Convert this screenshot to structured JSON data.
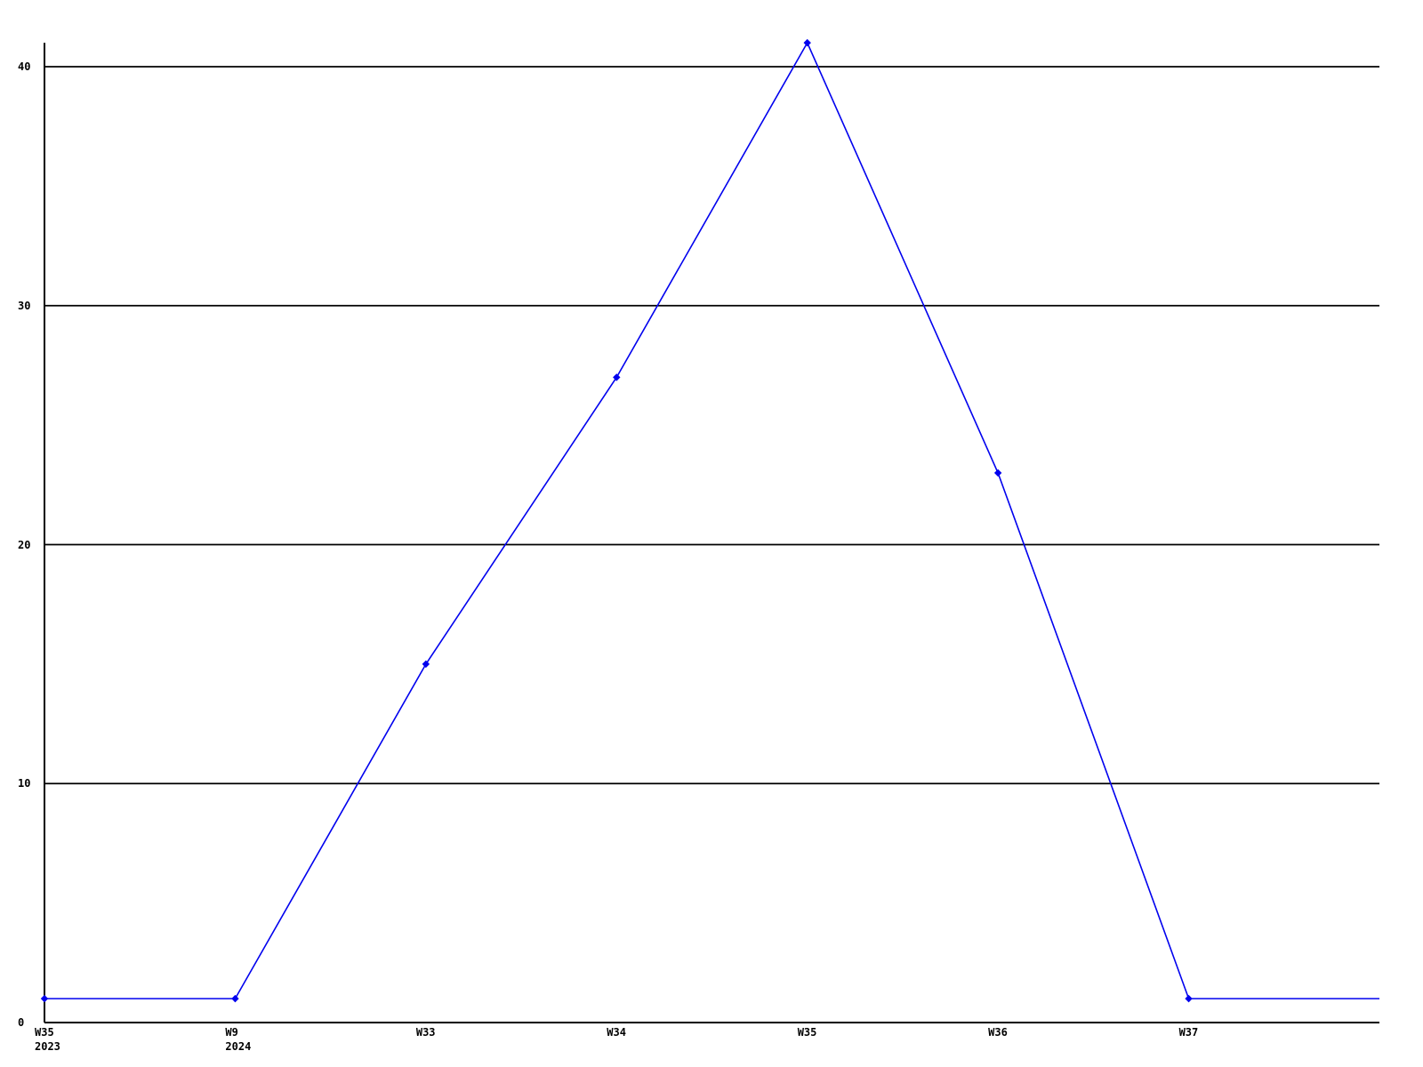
{
  "chart_data": {
    "type": "line",
    "title": "",
    "xlabel": "",
    "ylabel": "",
    "x_tick_labels": [
      {
        "week": "W35",
        "year": "2023"
      },
      {
        "week": "W9",
        "year": "2024"
      },
      {
        "week": "W33",
        "year": ""
      },
      {
        "week": "W34",
        "year": ""
      },
      {
        "week": "W35",
        "year": ""
      },
      {
        "week": "W36",
        "year": ""
      },
      {
        "week": "W37",
        "year": ""
      }
    ],
    "values": [
      1,
      1,
      15,
      27,
      41,
      23,
      1
    ],
    "trailing_edge_value": 1,
    "y_ticks": [
      0,
      10,
      20,
      30,
      40
    ],
    "ylim": [
      0,
      41
    ],
    "legend": null,
    "grid": "horizontal",
    "colors": {
      "series": "#0000ee",
      "grid": "#000000",
      "axis": "#000000",
      "text": "#000000",
      "background": "#ffffff"
    }
  }
}
